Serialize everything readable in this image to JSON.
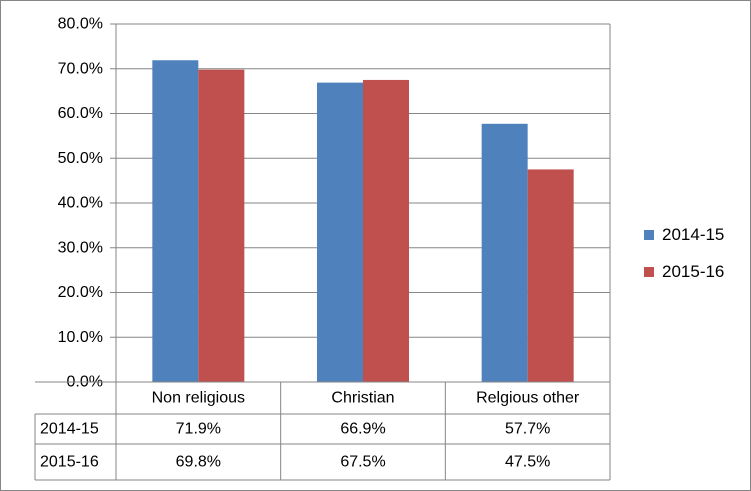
{
  "chart_data": {
    "type": "bar",
    "categories": [
      "Non religious",
      "Christian",
      "Relgious other"
    ],
    "series": [
      {
        "name": "2014-15",
        "values": [
          71.9,
          66.9,
          57.7
        ],
        "labels": [
          "71.9%",
          "66.9%",
          "57.7%"
        ],
        "color": "#4F81BD"
      },
      {
        "name": "2015-16",
        "values": [
          69.8,
          67.5,
          47.5
        ],
        "labels": [
          "69.8%",
          "67.5%",
          "47.5%"
        ],
        "color": "#C0504D"
      }
    ],
    "ylim": [
      0,
      80
    ],
    "yticks": [
      0,
      10,
      20,
      30,
      40,
      50,
      60,
      70,
      80
    ],
    "ytick_labels": [
      "0.0%",
      "10.0%",
      "20.0%",
      "30.0%",
      "40.0%",
      "50.0%",
      "60.0%",
      "70.0%",
      "80.0%"
    ],
    "grid": true,
    "legend": "right",
    "data_table": true,
    "title": "",
    "xlabel": "",
    "ylabel": ""
  }
}
